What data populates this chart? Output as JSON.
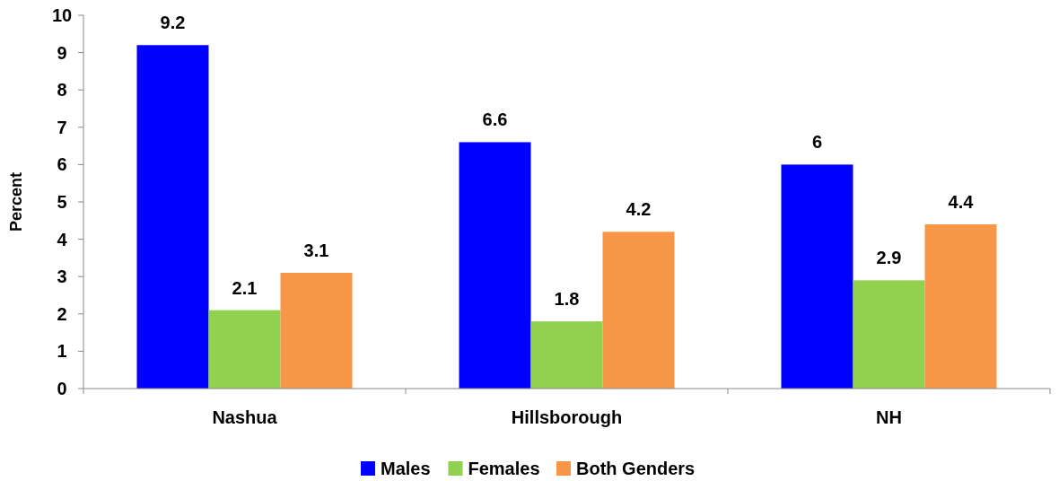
{
  "chart_data": {
    "type": "bar",
    "ylabel": "Percent",
    "categories": [
      "Nashua",
      "Hillsborough",
      "NH"
    ],
    "series": [
      {
        "name": "Males",
        "color": "#0000ff",
        "values": [
          9.2,
          6.6,
          6
        ]
      },
      {
        "name": "Females",
        "color": "#92d050",
        "values": [
          2.1,
          1.8,
          2.9
        ]
      },
      {
        "name": "Both Genders",
        "color": "#f79646",
        "values": [
          3.1,
          4.2,
          4.4
        ]
      }
    ],
    "ylim": [
      0,
      10
    ],
    "yticks": [
      0,
      1,
      2,
      3,
      4,
      5,
      6,
      7,
      8,
      9,
      10
    ],
    "grid": false,
    "legend": "bottom",
    "data_labels": true
  }
}
